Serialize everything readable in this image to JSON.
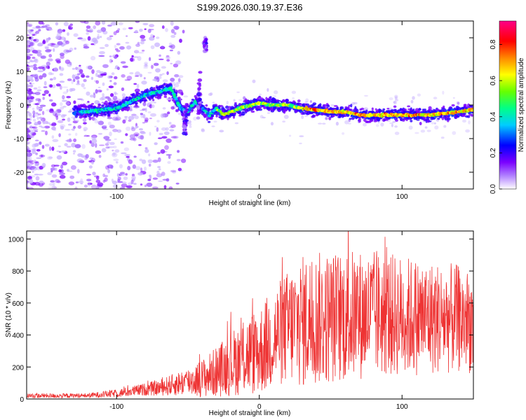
{
  "title": "S199.2026.030.19.37.E36",
  "chart_data": [
    {
      "type": "heatmap",
      "name": "spectrogram",
      "xlabel": "Height of straight line (km)",
      "ylabel": "Frequency (Hz)",
      "xlim": [
        -163,
        150
      ],
      "ylim": [
        -25,
        25
      ],
      "xticks": [
        -100,
        0,
        100
      ],
      "yticks": [
        -20,
        -10,
        0,
        10,
        20
      ],
      "xtick_labels": [
        "-100",
        "0",
        "100"
      ],
      "ytick_labels": [
        "-20",
        "-10",
        "0",
        "10",
        "20"
      ],
      "colorbar": {
        "label": "Normalized spectral amplitude",
        "range": [
          0,
          0.93
        ],
        "ticks": [
          0.0,
          0.2,
          0.4,
          0.6,
          0.8
        ],
        "tick_labels": [
          "0.0",
          "0.2",
          "0.4",
          "0.6",
          "0.8"
        ],
        "colormap": [
          "#ffffff",
          "#7a00ff",
          "#0000ff",
          "#00ffff",
          "#00ff00",
          "#ffff00",
          "#ff8800",
          "#ff0000",
          "#ff00aa"
        ]
      },
      "ridge": {
        "description": "dominant frequency track (Hz) vs height (km)",
        "x": [
          -125,
          -110,
          -100,
          -90,
          -80,
          -70,
          -62,
          -55,
          -50,
          -45,
          -40,
          -35,
          -30,
          -25,
          -20,
          -10,
          0,
          10,
          20,
          30,
          40,
          50,
          60,
          70,
          80,
          90,
          100,
          110,
          120,
          130,
          140,
          148
        ],
        "y": [
          -2,
          -1.5,
          -1,
          1,
          3,
          4,
          5,
          -1,
          -2,
          1,
          -1,
          -3,
          -1,
          -3,
          -2,
          -0.5,
          0.5,
          0,
          0,
          -1,
          -1.5,
          -2,
          -2,
          -3,
          -3,
          -3,
          -3,
          -3,
          -3,
          -2.5,
          -2,
          -1.5
        ]
      }
    },
    {
      "type": "line",
      "name": "snr",
      "xlabel": "Height of straight line (km)",
      "ylabel": "SNR (10 * v/v)",
      "xlim": [
        -163,
        150
      ],
      "ylim": [
        0,
        1050
      ],
      "xticks": [
        -100,
        0,
        100
      ],
      "yticks": [
        0,
        200,
        400,
        600,
        800,
        1000
      ],
      "xtick_labels": [
        "-100",
        "0",
        "100"
      ],
      "ytick_labels": [
        "0",
        "200",
        "400",
        "600",
        "800",
        "1000"
      ],
      "color": "#ee3333",
      "envelope": {
        "x": [
          -163,
          -140,
          -120,
          -100,
          -80,
          -70,
          -60,
          -50,
          -40,
          -30,
          -20,
          -10,
          0,
          10,
          20,
          30,
          40,
          60,
          80,
          100,
          120,
          140,
          150
        ],
        "mean": [
          20,
          20,
          22,
          35,
          60,
          70,
          90,
          110,
          130,
          170,
          220,
          270,
          300,
          380,
          450,
          480,
          500,
          520,
          530,
          520,
          510,
          500,
          480
        ],
        "amp": [
          15,
          15,
          15,
          25,
          40,
          50,
          70,
          90,
          120,
          160,
          200,
          250,
          280,
          320,
          360,
          420,
          420,
          420,
          400,
          380,
          360,
          340,
          320
        ]
      }
    }
  ]
}
